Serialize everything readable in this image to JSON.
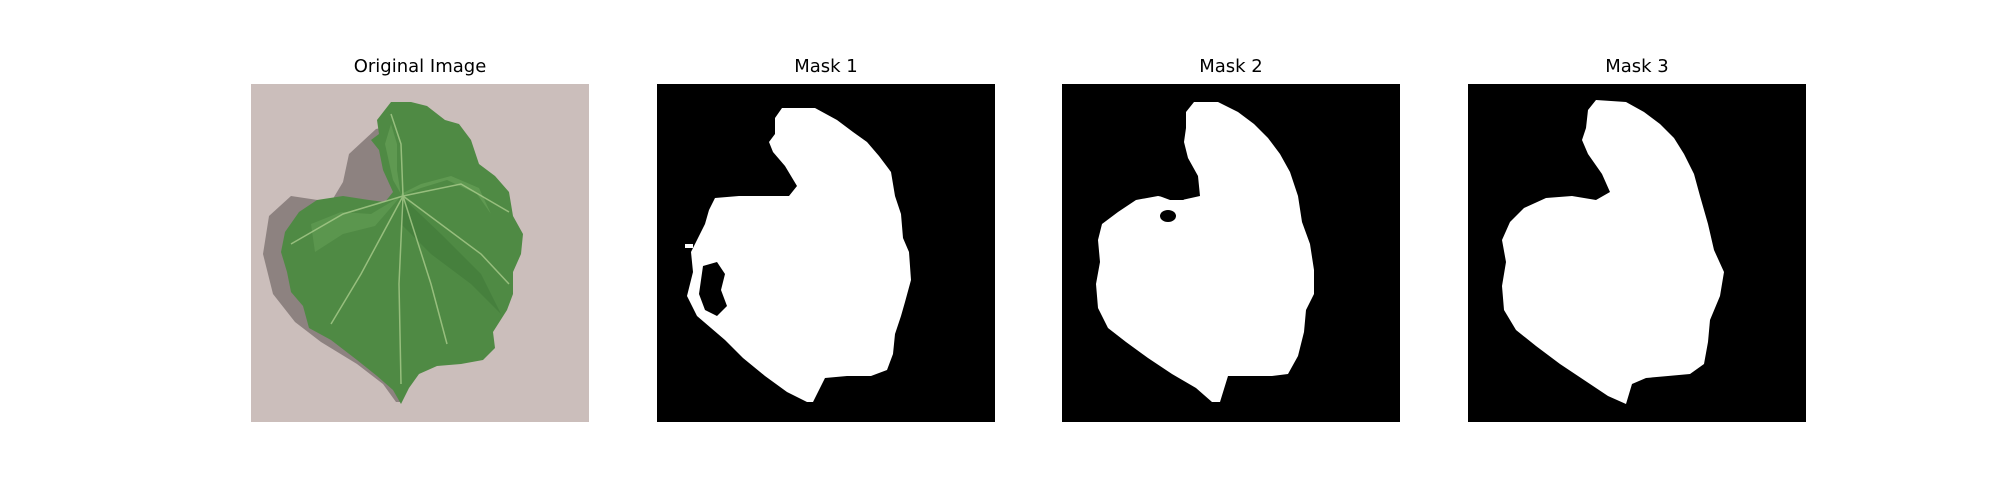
{
  "figure": {
    "panels": [
      {
        "title": "Original Image",
        "kind": "photo"
      },
      {
        "title": "Mask 1",
        "kind": "mask"
      },
      {
        "title": "Mask 2",
        "kind": "mask"
      },
      {
        "title": "Mask 3",
        "kind": "mask"
      }
    ]
  },
  "colors": {
    "background": "#ffffff",
    "mask_fg": "#ffffff",
    "mask_bg": "#000000",
    "leaf_light": "#6aa35a",
    "leaf_mid": "#4f8a44",
    "leaf_dark": "#3c7335",
    "ground": "#c9bcb8",
    "shadow": "#5b5150"
  }
}
